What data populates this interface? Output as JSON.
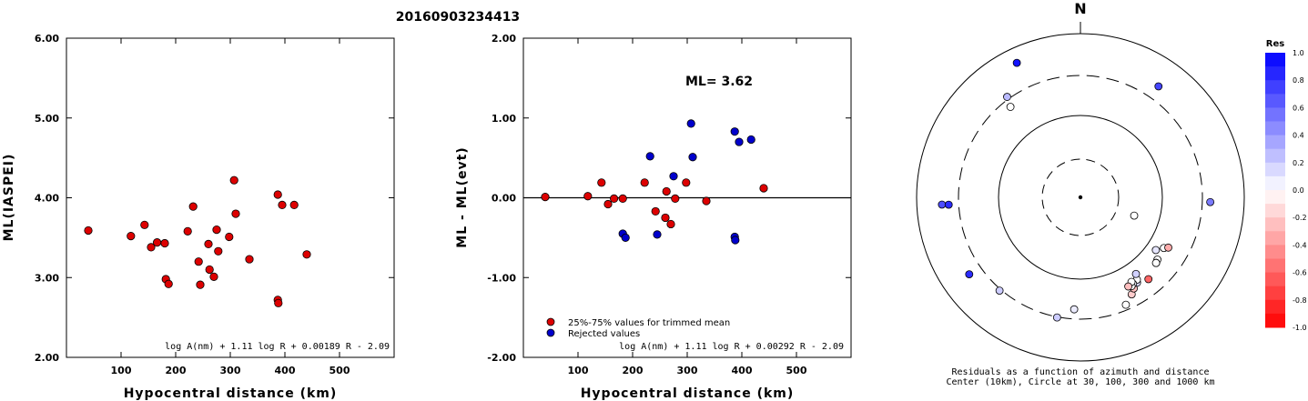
{
  "figure_title": "20160903234413",
  "chart_data": [
    {
      "type": "scatter",
      "id": "left",
      "xlabel": "Hypocentral distance (km)",
      "ylabel": "ML(IASPEI)",
      "xlim": [
        0,
        600
      ],
      "ylim": [
        2.0,
        6.0
      ],
      "xticks": [
        "100",
        "200",
        "300",
        "400",
        "500"
      ],
      "yticks": [
        "2.00",
        "3.00",
        "4.00",
        "5.00",
        "6.00"
      ],
      "formula": "log A(nm) + 1.11 log R + 0.00189 R - 2.09",
      "series": [
        {
          "color": "#dd0000",
          "points": [
            [
              40,
              3.59
            ],
            [
              118,
              3.52
            ],
            [
              143,
              3.66
            ],
            [
              155,
              3.38
            ],
            [
              166,
              3.44
            ],
            [
              180,
              3.43
            ],
            [
              182,
              2.98
            ],
            [
              187,
              2.92
            ],
            [
              222,
              3.58
            ],
            [
              232,
              3.89
            ],
            [
              242,
              3.2
            ],
            [
              245,
              2.91
            ],
            [
              260,
              3.42
            ],
            [
              262,
              3.1
            ],
            [
              270,
              3.01
            ],
            [
              275,
              3.6
            ],
            [
              278,
              3.33
            ],
            [
              298,
              3.51
            ],
            [
              307,
              4.22
            ],
            [
              310,
              3.8
            ],
            [
              335,
              3.23
            ],
            [
              387,
              4.04
            ],
            [
              387,
              2.72
            ],
            [
              388,
              2.68
            ],
            [
              395,
              3.91
            ],
            [
              417,
              3.91
            ],
            [
              440,
              3.29
            ]
          ]
        }
      ]
    },
    {
      "type": "scatter",
      "id": "middle",
      "xlabel": "Hypocentral distance (km)",
      "ylabel": "ML - ML(evt)",
      "xlim": [
        0,
        600
      ],
      "ylim": [
        -2.0,
        2.0
      ],
      "xticks": [
        "100",
        "200",
        "300",
        "400",
        "500"
      ],
      "yticks": [
        "-2.00",
        "-1.00",
        "0.00",
        "1.00",
        "2.00"
      ],
      "ml_label": "ML= 3.62",
      "formula": "log A(nm) + 1.11 log R + 0.00292 R - 2.09",
      "legend": [
        "25%-75% values for trimmed mean",
        "Rejected values"
      ],
      "series": [
        {
          "name": "25%-75% values for trimmed mean",
          "color": "#dd0000",
          "points": [
            [
              40,
              0.01
            ],
            [
              118,
              0.02
            ],
            [
              143,
              0.19
            ],
            [
              155,
              -0.08
            ],
            [
              166,
              -0.01
            ],
            [
              182,
              -0.01
            ],
            [
              222,
              0.19
            ],
            [
              242,
              -0.17
            ],
            [
              260,
              -0.25
            ],
            [
              262,
              0.08
            ],
            [
              270,
              -0.33
            ],
            [
              278,
              -0.01
            ],
            [
              298,
              0.19
            ],
            [
              335,
              -0.04
            ],
            [
              440,
              0.12
            ]
          ]
        },
        {
          "name": "Rejected values",
          "color": "#0000cc",
          "points": [
            [
              182,
              -0.45
            ],
            [
              187,
              -0.5
            ],
            [
              232,
              0.52
            ],
            [
              245,
              -0.46
            ],
            [
              275,
              0.27
            ],
            [
              307,
              0.93
            ],
            [
              310,
              0.51
            ],
            [
              387,
              0.83
            ],
            [
              387,
              -0.49
            ],
            [
              388,
              -0.53
            ],
            [
              395,
              0.7
            ],
            [
              417,
              0.73
            ]
          ]
        }
      ]
    },
    {
      "type": "polar-scatter",
      "id": "azimuth",
      "north_label": "N",
      "caption_line1": "Residuals as a function of azimuth and distance",
      "caption_line2": "Center (10km), Circle at 30, 100, 300 and 1000 km",
      "colorbar_title": "Res",
      "colorbar_ticks": [
        "1.0",
        "0.8",
        "0.6",
        "0.4",
        "0.2",
        "0.0",
        "-0.2",
        "-0.4",
        "-0.6",
        "-0.8",
        "-1.0"
      ],
      "colors": {
        "positive": "#0000ff",
        "negative": "#ff0000",
        "neutral": "#ffffff"
      },
      "stations": [
        {
          "az": -25.3,
          "dist": 650,
          "res": 0.93
        },
        {
          "az": -36.1,
          "dist": 322,
          "res": 0.27
        },
        {
          "az": -37.7,
          "dist": 244,
          "res": 0.0
        },
        {
          "az": 35.1,
          "dist": 446,
          "res": 0.73
        },
        {
          "az": -93.0,
          "dist": 485,
          "res": 0.7
        },
        {
          "az": -93.2,
          "dist": 400,
          "res": 0.83
        },
        {
          "az": -124.7,
          "dist": 440,
          "res": 0.83
        },
        {
          "az": -139.1,
          "dist": 314,
          "res": 0.2
        },
        {
          "az": -169.0,
          "dist": 305,
          "res": 0.2
        },
        {
          "az": -176.8,
          "dist": 230,
          "res": 0.08
        },
        {
          "az": 92.1,
          "dist": 377,
          "res": 0.52
        },
        {
          "az": 157.1,
          "dist": 260,
          "res": 0.0
        },
        {
          "az": 152.2,
          "dist": 215,
          "res": -0.2
        },
        {
          "az": 149.7,
          "dist": 192,
          "res": -0.25
        },
        {
          "az": 146.5,
          "dist": 176,
          "res": 0.15
        },
        {
          "az": 145.6,
          "dist": 164,
          "res": 0.0
        },
        {
          "az": 148.7,
          "dist": 170,
          "res": 0.05
        },
        {
          "az": 150.1,
          "dist": 176,
          "res": 0.0
        },
        {
          "az": 148.9,
          "dist": 159,
          "res": 0.0
        },
        {
          "az": 151.8,
          "dist": 170,
          "res": -0.25
        },
        {
          "az": 144.1,
          "dist": 142,
          "res": 0.18
        },
        {
          "az": 129.0,
          "dist": 160,
          "res": 0.0
        },
        {
          "az": 121.3,
          "dist": 154,
          "res": 0.0
        },
        {
          "az": 119.8,
          "dist": 170,
          "res": -0.33
        },
        {
          "az": 125.0,
          "dist": 132,
          "res": 0.1
        },
        {
          "az": 140.3,
          "dist": 196,
          "res": -0.6
        },
        {
          "az": 130.9,
          "dist": 165,
          "res": -0.35
        },
        {
          "az": 131.0,
          "dist": 165,
          "res": 0.0
        },
        {
          "az": 108.8,
          "dist": 50,
          "res": 0.0
        }
      ]
    }
  ]
}
